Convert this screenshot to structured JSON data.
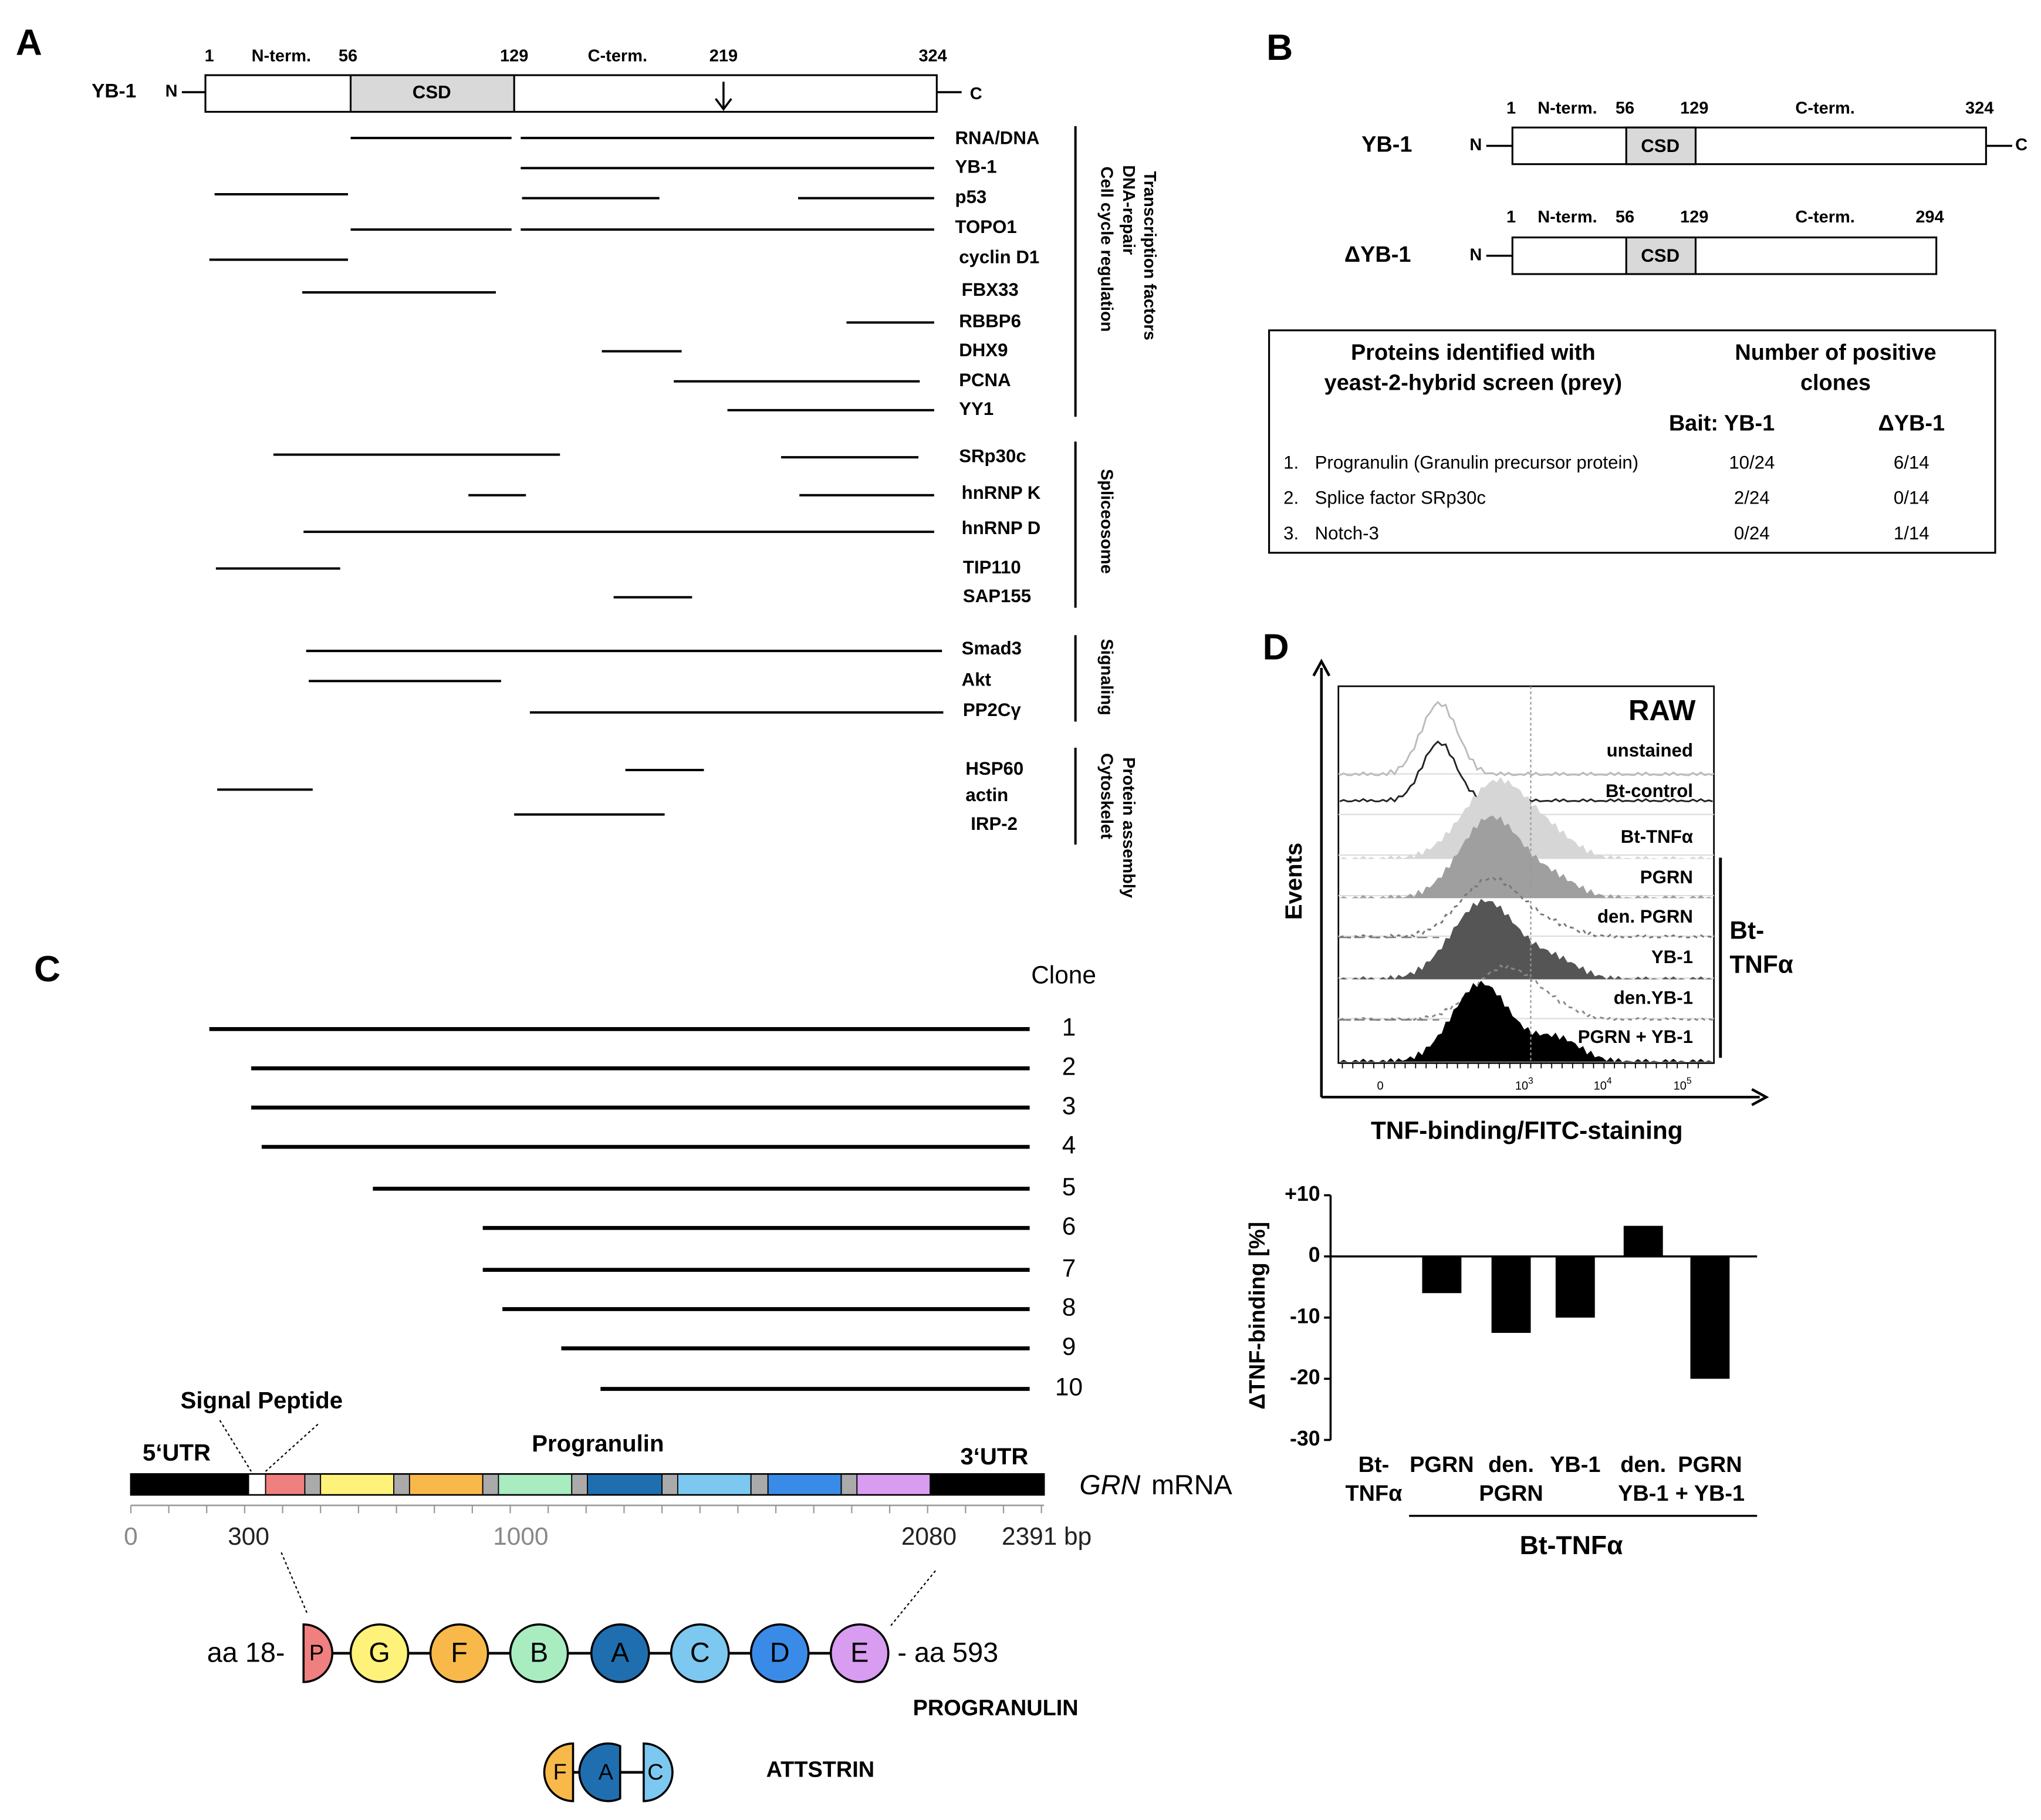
{
  "panel_a": {
    "label": "A",
    "protein": {
      "name": "YB-1",
      "n_end": "N",
      "c_end": "C",
      "positions": [
        "1",
        "56",
        "129",
        "219",
        "324"
      ],
      "n_term": "N-term.",
      "c_term": "C-term.",
      "domain": "CSD"
    },
    "interactors": [
      "RNA/DNA",
      "YB-1",
      "p53",
      "TOPO1",
      "cyclin D1",
      "FBX33",
      "RBBP6",
      "DHX9",
      "PCNA",
      "YY1",
      "SRp30c",
      "hnRNP K",
      "hnRNP D",
      "TIP110",
      "SAP155",
      "Smad3",
      "Akt",
      "PP2Cγ",
      "HSP60",
      "actin",
      "IRP-2"
    ],
    "groups": [
      [
        "Transcription factors",
        "DNA-repair",
        "Cell cycle regulation"
      ],
      [
        "Spliceosome"
      ],
      [
        "Signaling"
      ],
      [
        "Protein assembly",
        "Cytoskelet"
      ]
    ]
  },
  "panel_b": {
    "label": "B",
    "constructs": [
      {
        "name": "YB-1",
        "n_end": "N",
        "c_end": "C",
        "positions": [
          "1",
          "56",
          "129",
          "324"
        ],
        "n_term": "N-term.",
        "c_term": "C-term.",
        "domain": "CSD"
      },
      {
        "name": "ΔYB-1",
        "n_end": "N",
        "positions": [
          "1",
          "56",
          "129",
          "294"
        ],
        "n_term": "N-term.",
        "c_term": "C-term.",
        "domain": "CSD"
      }
    ],
    "table": {
      "header": [
        [
          "Proteins identified with",
          "yeast-2-hybrid screen (prey)"
        ],
        [
          "Number of positive",
          "clones"
        ]
      ],
      "subheader": [
        "Bait: YB-1",
        "ΔYB-1"
      ],
      "rows": [
        [
          "1.",
          "Progranulin (Granulin precursor protein)",
          "10/24",
          "6/14"
        ],
        [
          "2.",
          "Splice factor SRp30c",
          "2/24",
          "0/14"
        ],
        [
          "3.",
          "Notch-3",
          "0/24",
          "1/14"
        ]
      ]
    }
  },
  "panel_c": {
    "label": "C",
    "clone_header": "Clone",
    "clones": [
      "1",
      "2",
      "3",
      "4",
      "5",
      "6",
      "7",
      "8",
      "9",
      "10"
    ],
    "signal_peptide": "Signal Peptide",
    "utr5": "5‘UTR",
    "progranulin": "Progranulin",
    "utr3": "3‘UTR",
    "gene": "GRN",
    "mrna": "mRNA",
    "scale": [
      "0",
      "300",
      "1000",
      "2080",
      "2391 bp"
    ],
    "aa_start": "aa 18-",
    "aa_end": "- aa 593",
    "domains": [
      "P",
      "G",
      "F",
      "B",
      "A",
      "C",
      "D",
      "E"
    ],
    "protein": "PROGRANULIN",
    "attstrin_domains": [
      "F",
      "A",
      "C"
    ],
    "attstrin": "ATTSTRIN"
  },
  "panel_d": {
    "label": "D",
    "cell": "RAW",
    "conditions": [
      "unstained",
      "Bt-control",
      "Bt-TNFα",
      "PGRN",
      "den. PGRN",
      "YB-1",
      "den.YB-1",
      "PGRN + YB-1"
    ],
    "bracket": [
      "Bt-",
      "TNFα"
    ],
    "y_label": "Events",
    "x_label": "TNF-binding/FITC-staining",
    "x_ticks": [
      {
        "base": "0"
      },
      {
        "base": "10",
        "exp": "3"
      },
      {
        "base": "10",
        "exp": "4"
      },
      {
        "base": "10",
        "exp": "5"
      }
    ]
  },
  "chart_data": {
    "type": "bar",
    "ylabel": "ΔTNF-binding [%]",
    "categories": [
      [
        "Bt-",
        "TNFα"
      ],
      [
        "PGRN"
      ],
      [
        "den.",
        "PGRN"
      ],
      [
        "YB-1"
      ],
      [
        "den.",
        "YB-1"
      ],
      [
        "PGRN",
        "+ YB-1"
      ]
    ],
    "values": [
      0,
      -6,
      -12.5,
      -10,
      5,
      -20
    ],
    "color": "#000000",
    "ylim": [
      -30,
      10
    ],
    "yticks": [
      -30,
      -20,
      -10,
      0,
      {
        "value": 10,
        "label": "+10"
      }
    ],
    "group_label": "Bt-TNFα"
  }
}
